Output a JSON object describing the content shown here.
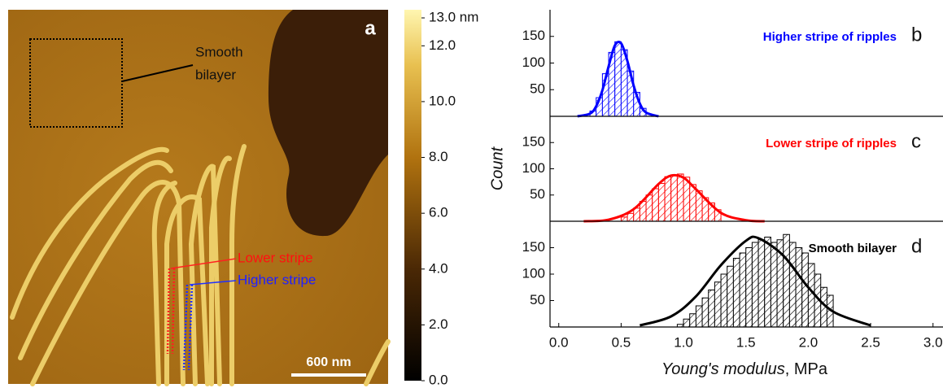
{
  "image_panel": {
    "panel_label": "a",
    "smooth_label": [
      "Smooth",
      "bilayer"
    ],
    "lower_label": "Lower stripe",
    "higher_label": "Higher stripe",
    "scale_bar": "600 nm",
    "colorbar": {
      "range": [
        0,
        13
      ],
      "ticks": [
        {
          "value": 13,
          "label": "13.0 nm"
        },
        {
          "value": 12,
          "label": "12.0"
        },
        {
          "value": 10,
          "label": "10.0"
        },
        {
          "value": 8,
          "label": "8.0"
        },
        {
          "value": 6,
          "label": "6.0"
        },
        {
          "value": 4,
          "label": "4.0"
        },
        {
          "value": 2,
          "label": "2.0"
        },
        {
          "value": 0,
          "label": "0.0"
        }
      ]
    }
  },
  "chart_data": [
    {
      "type": "histogram",
      "title": "Higher stripe of ripples",
      "panel_label": "b",
      "color": "#0000ff",
      "bins": [
        0.25,
        0.3,
        0.35,
        0.4,
        0.45,
        0.5,
        0.55,
        0.6,
        0.65,
        0.7
      ],
      "counts": [
        10,
        35,
        80,
        120,
        140,
        125,
        85,
        45,
        15
      ],
      "fit": {
        "x": [
          0.15,
          0.25,
          0.3,
          0.35,
          0.4,
          0.45,
          0.5,
          0.55,
          0.6,
          0.65,
          0.7,
          0.8
        ],
        "y": [
          0,
          5,
          19,
          49,
          94,
          133,
          137,
          104,
          58,
          24,
          7,
          0
        ]
      },
      "xlim": [
        -0.07,
        3.08
      ],
      "ylim": [
        0,
        200
      ],
      "yticks": [
        50,
        100,
        150
      ]
    },
    {
      "type": "histogram",
      "title": "Lower stripe of ripples",
      "panel_label": "c",
      "color": "#ff0000",
      "y_label": "Count",
      "bins": [
        0.5,
        0.55,
        0.6,
        0.65,
        0.7,
        0.75,
        0.8,
        0.85,
        0.9,
        0.95,
        1.0,
        1.05,
        1.1,
        1.15,
        1.2,
        1.25,
        1.3
      ],
      "counts": [
        8,
        15,
        25,
        38,
        50,
        62,
        72,
        85,
        88,
        90,
        84,
        70,
        58,
        45,
        35,
        22
      ],
      "fit": {
        "x": [
          0.2,
          0.4,
          0.6,
          0.8,
          0.9,
          1.0,
          1.1,
          1.3,
          1.5,
          1.65
        ],
        "y": [
          0,
          3,
          23,
          71,
          87,
          83,
          61,
          16,
          2,
          0
        ]
      },
      "xlim": [
        -0.07,
        3.08
      ],
      "ylim": [
        0,
        200
      ],
      "yticks": [
        50,
        100,
        150
      ]
    },
    {
      "type": "histogram",
      "title": "Smooth bilayer",
      "panel_label": "d",
      "color": "#000000",
      "x_label": [
        "Young's modulus",
        ", MPa"
      ],
      "bins": [
        0.95,
        1.0,
        1.05,
        1.1,
        1.15,
        1.2,
        1.25,
        1.3,
        1.35,
        1.4,
        1.45,
        1.5,
        1.55,
        1.6,
        1.65,
        1.7,
        1.75,
        1.8,
        1.85,
        1.9,
        1.95,
        2.0,
        2.05,
        2.1,
        2.15,
        2.2
      ],
      "counts": [
        5,
        15,
        25,
        40,
        55,
        70,
        85,
        100,
        115,
        130,
        140,
        150,
        160,
        165,
        170,
        160,
        165,
        175,
        160,
        150,
        140,
        120,
        100,
        75,
        60
      ],
      "fit": {
        "x": [
          0.65,
          0.9,
          1.1,
          1.3,
          1.5,
          1.6,
          1.8,
          2.0,
          2.2,
          2.5
        ],
        "y": [
          3,
          20,
          58,
          117,
          163,
          168,
          135,
          75,
          29,
          3
        ]
      },
      "xlim": [
        -0.07,
        3.08
      ],
      "ylim": [
        0,
        200
      ],
      "yticks": [
        50,
        100,
        150
      ],
      "xticks": [
        {
          "value": 0,
          "label": "0.0"
        },
        {
          "value": 0.5,
          "label": "0.5"
        },
        {
          "value": 1,
          "label": "1.0"
        },
        {
          "value": 1.5,
          "label": "1.5"
        },
        {
          "value": 2,
          "label": "2.0"
        },
        {
          "value": 2.5,
          "label": "2.5"
        },
        {
          "value": 3,
          "label": "3.0"
        }
      ]
    }
  ]
}
